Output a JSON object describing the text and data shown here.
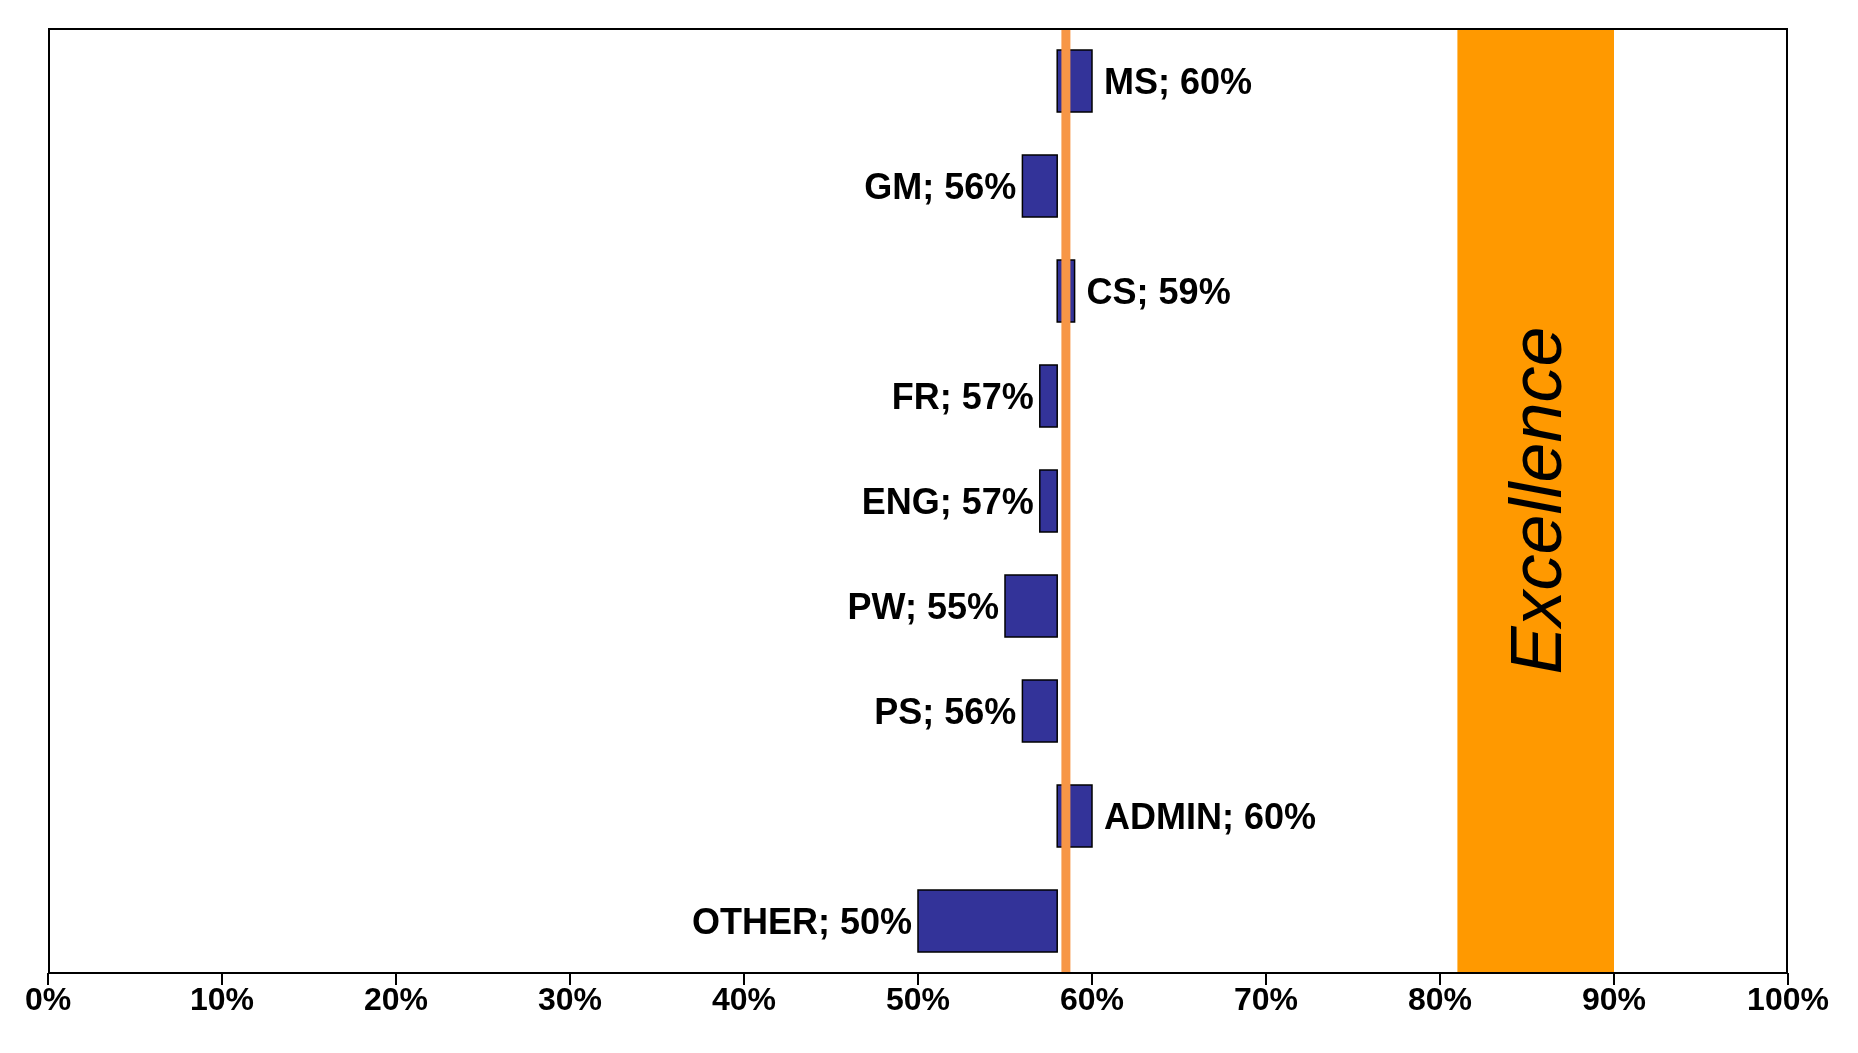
{
  "chart_data": {
    "type": "bar",
    "orientation": "horizontal",
    "categories": [
      null,
      null,
      null,
      null,
      null,
      null,
      null,
      null,
      null
    ],
    "base": [
      58,
      58,
      58,
      58,
      58,
      58,
      58,
      58,
      58
    ],
    "values": [
      2,
      -2,
      1,
      -1,
      -1,
      -3,
      -2,
      2,
      -8
    ],
    "value_labels": [
      "MS; 60%",
      "GM; 56%",
      "CS; 59%",
      "FR; 57%",
      "ENG; 57%",
      "PW; 55%",
      "PS; 56%",
      "ADMIN; 60%",
      "OTHER; 50%"
    ],
    "color": "#333399",
    "xlim": [
      0,
      100
    ],
    "xticks": [
      {
        "value": 0,
        "label": "0%"
      },
      {
        "value": 10,
        "label": "10%"
      },
      {
        "value": 20,
        "label": "20%"
      },
      {
        "value": 30,
        "label": "30%"
      },
      {
        "value": 40,
        "label": "40%"
      },
      {
        "value": 50,
        "label": "50%"
      },
      {
        "value": 60,
        "label": "60%"
      },
      {
        "value": 70,
        "label": "70%"
      },
      {
        "value": 80,
        "label": "80%"
      },
      {
        "value": 90,
        "label": "90%"
      },
      {
        "value": 100,
        "label": "100%"
      }
    ],
    "ref_lines": [
      {
        "axis": "x",
        "value": 58.5,
        "label": null,
        "color": "#f79646"
      }
    ],
    "bands": [
      {
        "axis": "x",
        "from": 81,
        "to": 90,
        "label": "Excellence",
        "color": "#ff9900"
      }
    ],
    "tick_labels": "x"
  }
}
